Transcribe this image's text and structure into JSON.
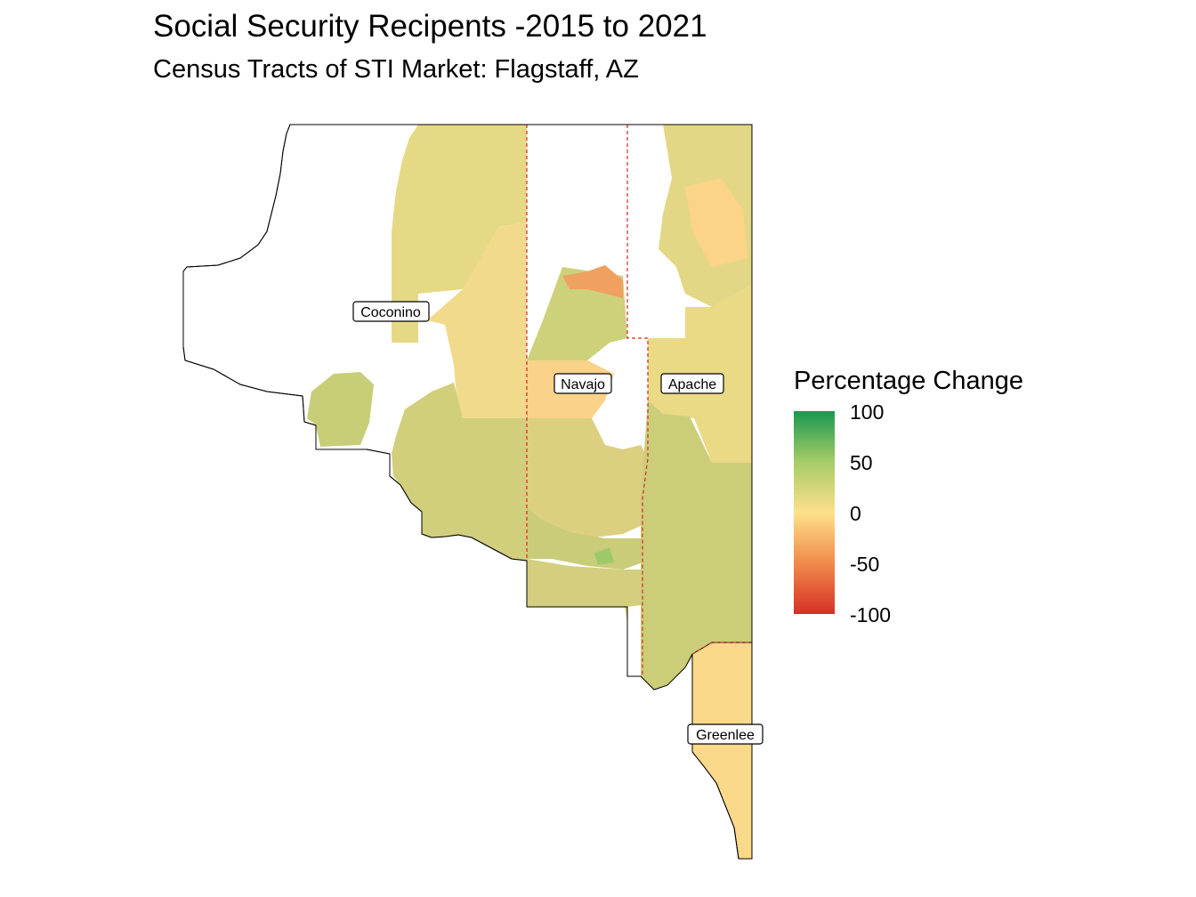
{
  "title": "Social Security Recipents -2015 to 2021",
  "subtitle": "Census Tracts of STI Market: Flagstaff, AZ",
  "counties": [
    {
      "name": "Coconino"
    },
    {
      "name": "Navajo"
    },
    {
      "name": "Apache"
    },
    {
      "name": "Greenlee"
    }
  ],
  "legend": {
    "title": "Percentage Change",
    "ticks": [
      "100",
      "50",
      "0",
      "-50",
      "-100"
    ],
    "range": [
      -100,
      100
    ],
    "colors": {
      "low": "#d73027",
      "low_mid": "#f08a4b",
      "mid": "#fee08b",
      "high_mid": "#a6cc68",
      "high": "#1a9850"
    }
  }
}
